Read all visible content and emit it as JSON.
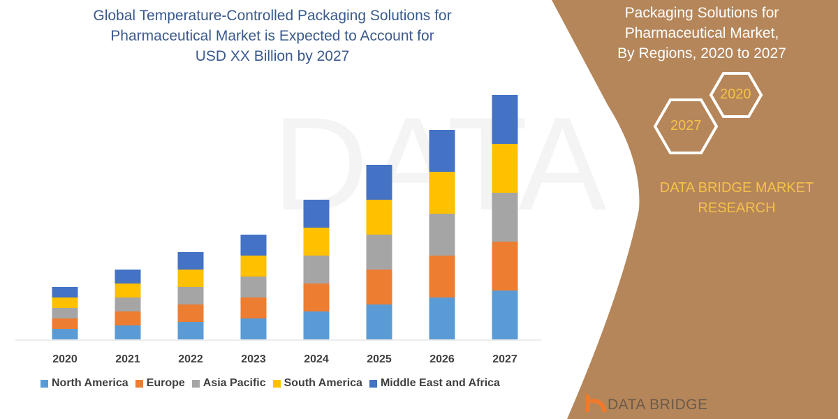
{
  "title": [
    "Global Temperature-Controlled Packaging Solutions for",
    "Pharmaceutical Market is Expected to Account for",
    "USD XX Billion by 2027"
  ],
  "side_panel": {
    "title": [
      "Packaging Solutions for",
      "Pharmaceutical Market,",
      "By Regions, 2020 to 2027"
    ],
    "hex_labels": [
      "2020",
      "2027"
    ],
    "brand": [
      "DATA BRIDGE MARKET",
      "RESEARCH"
    ],
    "footer_logo": "DATA BRIDGE",
    "panel_color": "#B5865A",
    "accent_color": "#F5C24A"
  },
  "watermark": "DATA BRIDGE",
  "chart_data": {
    "type": "bar",
    "stacked": true,
    "categories": [
      "2020",
      "2021",
      "2022",
      "2023",
      "2024",
      "2025",
      "2026",
      "2027"
    ],
    "series": [
      {
        "name": "North America",
        "color": "#5B9BD5",
        "values": [
          1.5,
          2,
          2.5,
          3,
          4,
          5,
          6,
          7
        ]
      },
      {
        "name": "Europe",
        "color": "#ED7D31",
        "values": [
          1.5,
          2,
          2.5,
          3,
          4,
          5,
          6,
          7
        ]
      },
      {
        "name": "Asia Pacific",
        "color": "#A5A5A5",
        "values": [
          1.5,
          2,
          2.5,
          3,
          4,
          5,
          6,
          7
        ]
      },
      {
        "name": "South America",
        "color": "#FFC000",
        "values": [
          1.5,
          2,
          2.5,
          3,
          4,
          5,
          6,
          7
        ]
      },
      {
        "name": "Middle East and Africa",
        "color": "#4472C4",
        "values": [
          1.5,
          2,
          2.5,
          3,
          4,
          5,
          6,
          7
        ]
      }
    ],
    "xlabel": "",
    "ylabel": "",
    "ylim": [
      0,
      35.5
    ],
    "y_axis_shown": false,
    "grid": false,
    "legend": "bottom"
  }
}
